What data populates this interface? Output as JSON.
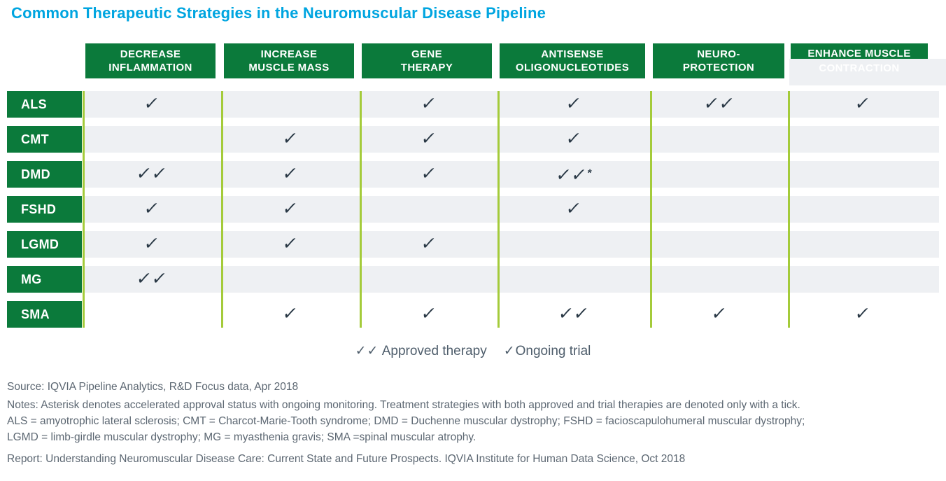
{
  "title": {
    "text": "Common Therapeutic Strategies in the Neuromuscular Disease Pipeline"
  },
  "colors": {
    "title_blue": "#00a5e0",
    "header_green": "#0b7a3b",
    "divider_lime": "#a4cb3a",
    "band_gray": "#eef0f3",
    "check_dark": "#293845",
    "legend_text": "#4e5d6b",
    "footnote_text": "#5c6772"
  },
  "chart_data": {
    "type": "table",
    "title": "Common Therapeutic Strategies in the Neuromuscular Disease Pipeline",
    "columns": [
      {
        "label": "DECREASE INFLAMMATION",
        "lines": [
          "DECREASE",
          "INFLAMMATION"
        ]
      },
      {
        "label": "INCREASE MUSCLE MASS",
        "lines": [
          "INCREASE",
          "MUSCLE MASS"
        ]
      },
      {
        "label": "GENE THERAPY",
        "lines": [
          "GENE",
          "THERAPY"
        ]
      },
      {
        "label": "ANTISENSE OLIGONUCLEOTIDES",
        "lines": [
          "ANTISENSE",
          "OLIGONUCLEOTIDES"
        ]
      },
      {
        "label": "NEURO-PROTECTION",
        "lines": [
          "NEURO-",
          "PROTECTION"
        ]
      },
      {
        "label": "ENHANCE MUSCLE CONTRACTION",
        "lines": [
          "ENHANCE MUSCLE",
          "CONTRACTION"
        ]
      }
    ],
    "rows": [
      "ALS",
      "CMT",
      "DMD",
      "FSHD",
      "LGMD",
      "MG",
      "SMA"
    ],
    "matrix": [
      [
        "✓",
        "",
        "✓",
        "✓",
        "✓✓",
        "✓"
      ],
      [
        "",
        "✓",
        "✓",
        "✓",
        "",
        ""
      ],
      [
        "✓✓",
        "✓",
        "✓",
        "✓✓*",
        "",
        ""
      ],
      [
        "✓",
        "✓",
        "",
        "✓",
        "",
        ""
      ],
      [
        "✓",
        "✓",
        "✓",
        "",
        "",
        ""
      ],
      [
        "✓✓",
        "",
        "",
        "",
        "",
        ""
      ],
      [
        "",
        "✓",
        "✓",
        "✓✓",
        "✓",
        "✓"
      ]
    ],
    "legend": {
      "approved_symbol": "✓✓",
      "approved_label": " Approved therapy",
      "ongoing_symbol": "✓",
      "ongoing_label": "Ongoing trial"
    }
  },
  "footnotes": {
    "source": "Source: IQVIA Pipeline Analytics, R&D Focus data, Apr 2018",
    "notes_line1": "Notes: Asterisk denotes accelerated approval status with ongoing monitoring. Treatment strategies with both approved and trial therapies are denoted only with a tick.",
    "notes_line2": "ALS = amyotrophic lateral sclerosis; CMT = Charcot-Marie-Tooth syndrome; DMD = Duchenne muscular dystrophy; FSHD = facioscapulohumeral muscular dystrophy;",
    "notes_line3": "LGMD = limb-girdle muscular dystrophy; MG = myasthenia gravis; SMA =spinal muscular atrophy.",
    "report": "Report: Understanding Neuromuscular Disease Care: Current State and Future Prospects. IQVIA Institute for Human Data Science, Oct 2018"
  }
}
